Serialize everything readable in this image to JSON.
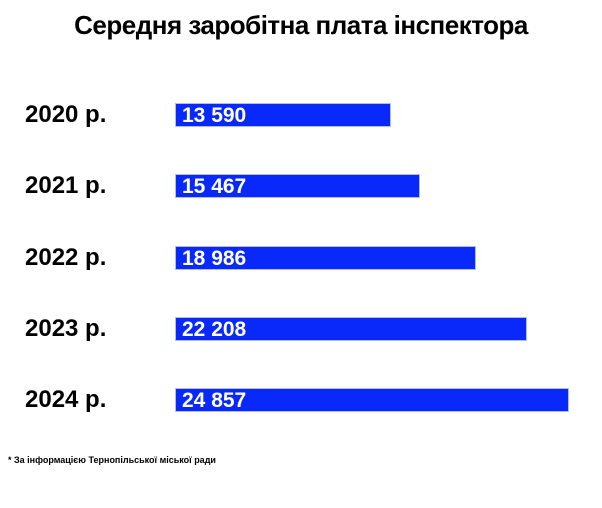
{
  "page": {
    "title": "Середня заробітна плата інспектора",
    "footnote": "* За інформацією Тернопільської міської ради"
  },
  "colors": {
    "background": "#ffffff",
    "bar_fill": "#0829fa",
    "bar_border": "#b0bcf2",
    "bar_label_text": "#ffffff",
    "text": "#000000"
  },
  "chart_data": {
    "type": "bar",
    "orientation": "horizontal",
    "title": "Середня заробітна плата інспектора",
    "categories": [
      "2020 р.",
      "2021 р.",
      "2022 р.",
      "2023 р.",
      "2024 р."
    ],
    "values": [
      13590,
      15467,
      18986,
      22208,
      24857
    ],
    "value_labels": [
      "13 590",
      "15 467",
      "18 986",
      "22 208",
      "24 857"
    ],
    "xlabel": "",
    "ylabel": "",
    "xlim": [
      0,
      25500
    ],
    "grid": false,
    "legend": false,
    "value_label_position": "inside-start",
    "footnote": "* За інформацією Тернопільської міської ради"
  }
}
